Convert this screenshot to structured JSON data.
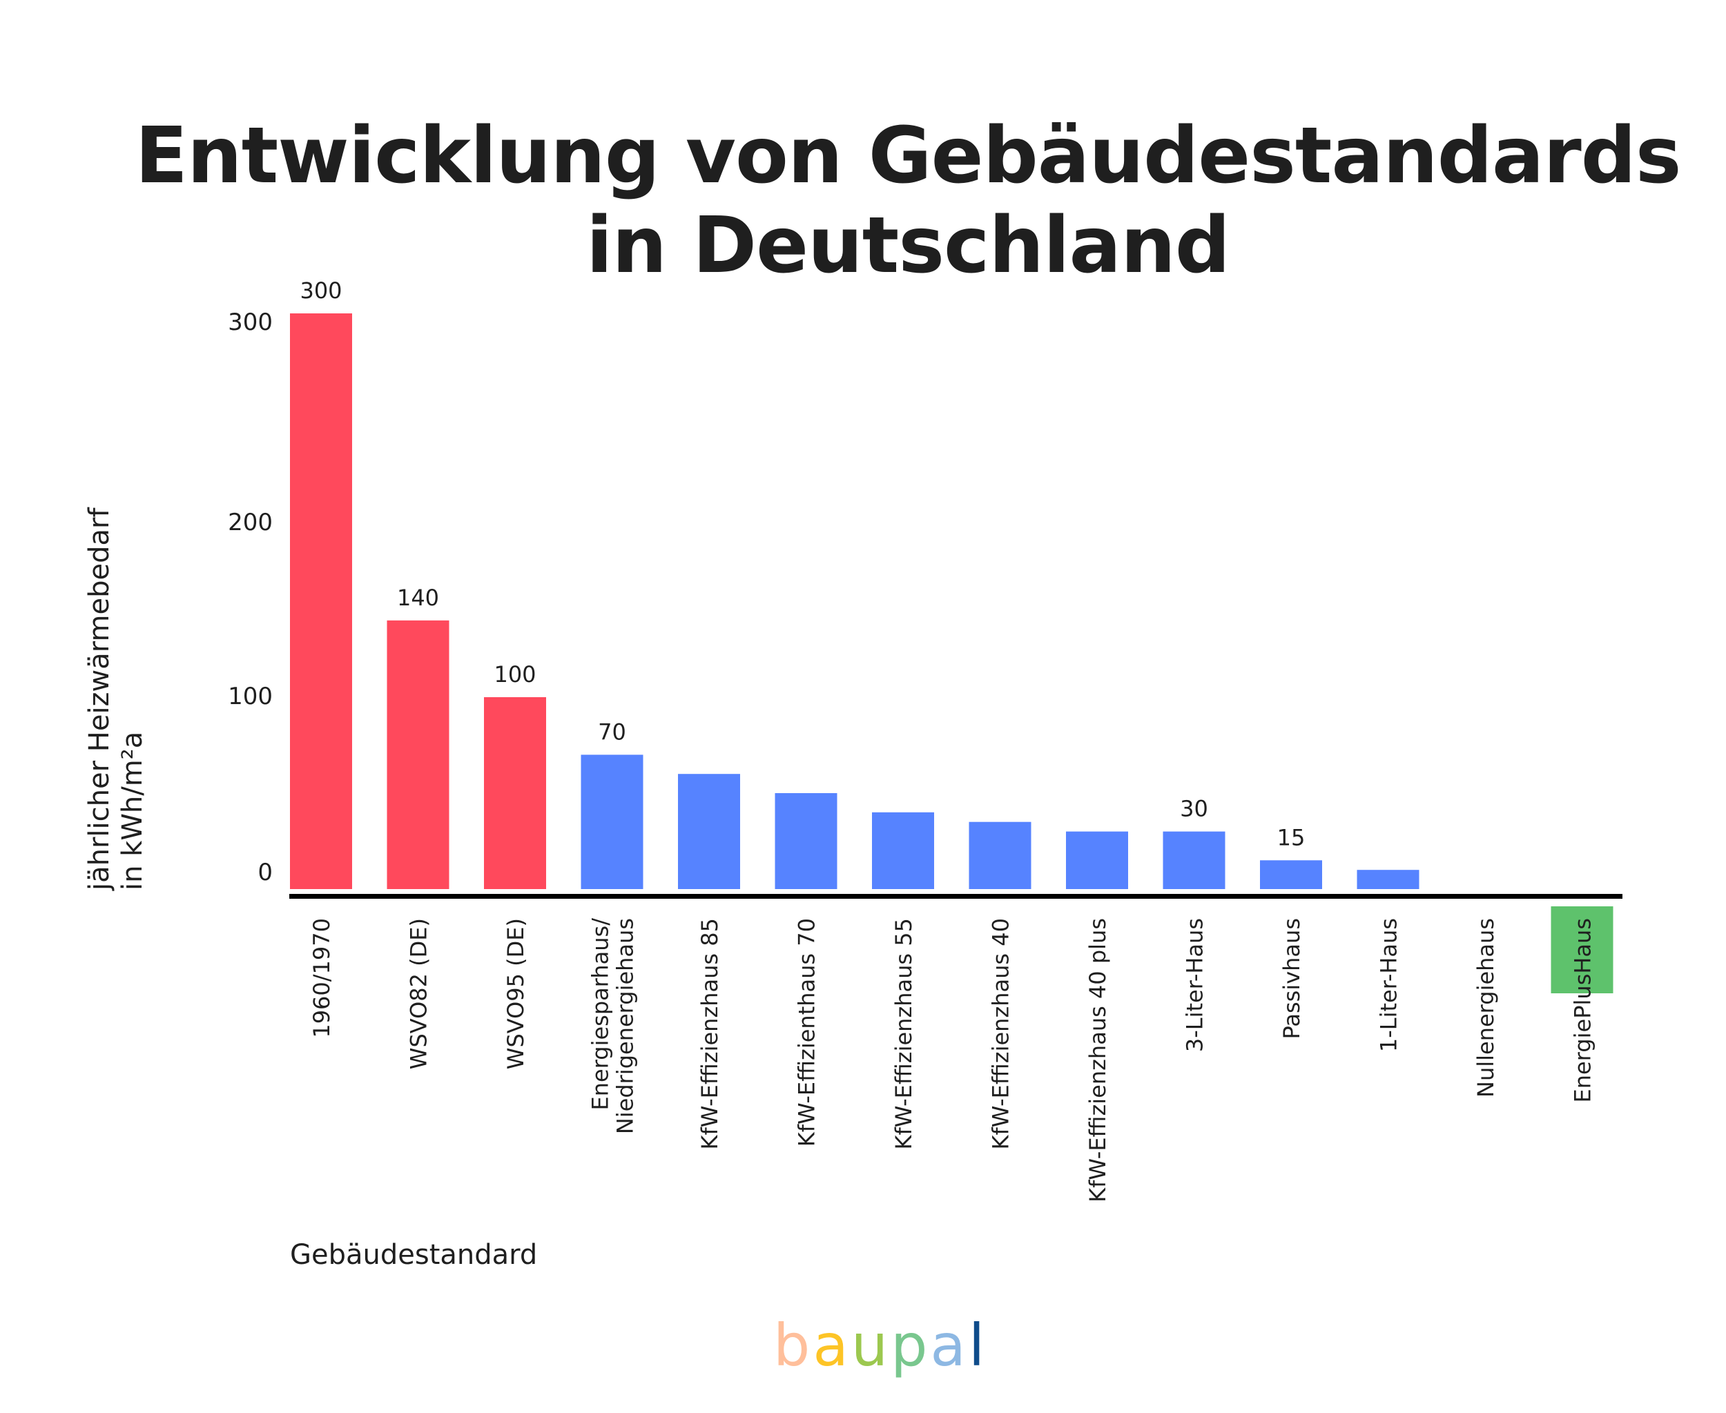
{
  "title": {
    "line1": "Entwicklung von Gebäudestandards",
    "line2": "in Deutschland"
  },
  "logo": {
    "letters": [
      {
        "char": "b",
        "color": "#ffbf9b"
      },
      {
        "char": "a",
        "color": "#fdc426"
      },
      {
        "char": "u",
        "color": "#9cc84f"
      },
      {
        "char": "p",
        "color": "#79c78e"
      },
      {
        "char": "a",
        "color": "#8db8e3"
      },
      {
        "char": "l",
        "color": "#0f4c8a"
      }
    ]
  },
  "colors": {
    "old": "#ff495c",
    "efficient": "#5683ff",
    "plus": "#5ec26c",
    "axis": "#000000",
    "text": "#1f1f1f"
  },
  "chart_data": {
    "type": "bar",
    "title": "Entwicklung von Gebäudestandards in Deutschland",
    "xlabel": "Gebäudestandard",
    "ylabel": "jährlicher Heizwärmebedarf in kWh/m²a",
    "ylabel_lines": [
      "jährlicher Heizwärmebedarf",
      "in kWh/m²a"
    ],
    "ylim": [
      -45,
      300
    ],
    "yticks": [
      0,
      100,
      200,
      300
    ],
    "grid": false,
    "legend": "none",
    "categories": [
      "1960/1970",
      "WSVO82 (DE)",
      "WSVO95 (DE)",
      "Energiesparhaus/\nNiedrigenergiehaus",
      "KfW-Effizienzhaus 85",
      "KfW-Effizienthaus 70",
      "KfW-Effizienzhaus 55",
      "KfW-Effizienzhaus 40",
      "KfW-Effizienzhaus 40 plus",
      "3-Liter-Haus",
      "Passivhaus",
      "1-Liter-Haus",
      "Nullenergiehaus",
      "EnergiePlusHaus"
    ],
    "values": [
      300,
      140,
      100,
      70,
      60,
      50,
      40,
      35,
      30,
      30,
      15,
      10,
      0,
      -35
    ],
    "data_labels": [
      "300",
      "140",
      "100",
      "70",
      "",
      "",
      "",
      "",
      "",
      "30",
      "15",
      "",
      "",
      ""
    ],
    "bar_groups": [
      "old",
      "old",
      "old",
      "efficient",
      "efficient",
      "efficient",
      "efficient",
      "efficient",
      "efficient",
      "efficient",
      "efficient",
      "efficient",
      "efficient",
      "plus"
    ]
  }
}
